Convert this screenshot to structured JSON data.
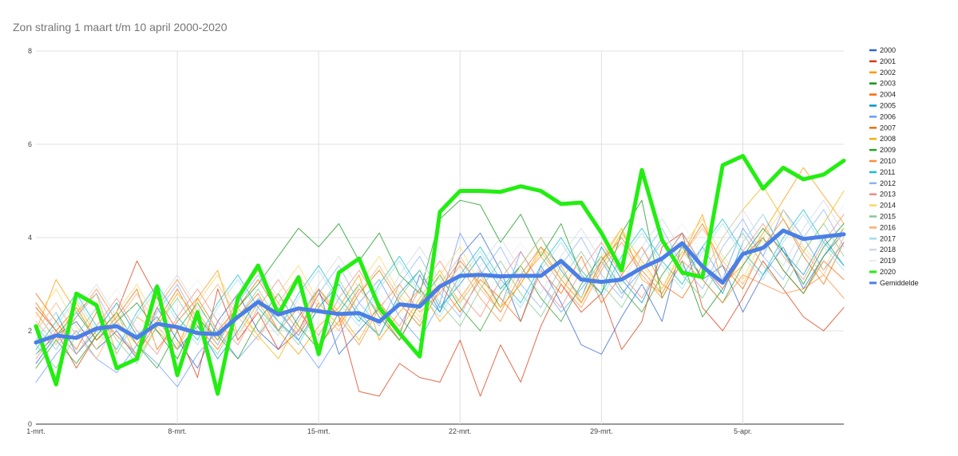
{
  "chart_data": {
    "type": "line",
    "title": "Zon straling 1 maart t/m 10 april 2000-2020",
    "xlabel": "",
    "ylabel": "",
    "ylim": [
      0,
      8
    ],
    "yticks": [
      "0",
      "2",
      "4",
      "6",
      "8"
    ],
    "x_tick_labels": [
      "1-mrt.",
      "8-mrt.",
      "15-mrt.",
      "22-mrt.",
      "29-mrt.",
      "5-apr."
    ],
    "x_tick_days": [
      1,
      8,
      15,
      22,
      29,
      36
    ],
    "x_days": [
      1,
      2,
      3,
      4,
      5,
      6,
      7,
      8,
      9,
      10,
      11,
      12,
      13,
      14,
      15,
      16,
      17,
      18,
      19,
      20,
      21,
      22,
      23,
      24,
      25,
      26,
      27,
      28,
      29,
      30,
      31,
      32,
      33,
      34,
      35,
      36,
      37,
      38,
      39,
      40,
      41
    ],
    "grid": true,
    "legend_position": "right",
    "series": [
      {
        "name": "2000",
        "color": "#3366cc",
        "width": 1,
        "values": [
          1.3,
          1.9,
          2.2,
          1.6,
          2.0,
          1.4,
          2.5,
          1.8,
          1.2,
          2.2,
          2.8,
          2.0,
          1.6,
          2.3,
          2.9,
          1.5,
          2.0,
          2.5,
          1.9,
          3.2,
          2.4,
          3.6,
          4.1,
          3.3,
          2.2,
          3.4,
          2.6,
          1.7,
          1.5,
          2.3,
          3.0,
          2.2,
          3.9,
          3.1,
          3.4,
          2.4,
          3.2,
          3.8,
          2.9,
          3.6,
          4.1
        ]
      },
      {
        "name": "2001",
        "color": "#dc3912",
        "width": 1,
        "values": [
          2.5,
          2.0,
          1.2,
          1.9,
          2.4,
          3.5,
          2.7,
          2.0,
          1.0,
          2.9,
          1.8,
          2.4,
          1.6,
          2.0,
          2.8,
          2.3,
          0.7,
          0.6,
          1.3,
          1.0,
          0.9,
          1.8,
          0.6,
          1.7,
          0.9,
          2.1,
          3.0,
          2.4,
          2.8,
          1.6,
          2.2,
          3.8,
          4.1,
          2.5,
          2.0,
          2.7,
          3.5,
          2.9,
          2.3,
          2.0,
          2.5
        ]
      },
      {
        "name": "2002",
        "color": "#ff9900",
        "width": 1,
        "values": [
          2.0,
          3.1,
          2.4,
          2.8,
          1.5,
          2.3,
          2.0,
          1.6,
          2.7,
          3.3,
          1.9,
          2.6,
          2.0,
          1.5,
          2.1,
          2.5,
          3.2,
          1.8,
          2.4,
          2.9,
          2.2,
          2.7,
          3.3,
          2.5,
          3.0,
          3.8,
          3.4,
          2.6,
          3.5,
          4.2,
          3.1,
          2.8,
          3.6,
          4.5,
          3.0,
          3.4,
          4.1,
          4.8,
          5.5,
          4.9,
          4.3
        ]
      },
      {
        "name": "2003",
        "color": "#109618",
        "width": 1,
        "values": [
          1.5,
          1.9,
          2.4,
          1.8,
          2.2,
          2.6,
          2.0,
          1.4,
          2.3,
          1.8,
          2.5,
          3.0,
          3.6,
          4.2,
          3.8,
          4.3,
          3.5,
          4.1,
          3.2,
          2.8,
          4.4,
          4.8,
          4.7,
          3.9,
          4.5,
          3.6,
          4.3,
          3.2,
          2.8,
          4.1,
          4.8,
          2.7,
          3.5,
          2.3,
          2.9,
          3.6,
          4.2,
          3.7,
          3.0,
          3.8,
          4.3
        ]
      },
      {
        "name": "2004",
        "color": "#ff6600",
        "width": 1,
        "values": [
          2.8,
          2.2,
          1.6,
          2.4,
          1.9,
          1.5,
          2.2,
          2.9,
          2.1,
          1.6,
          2.3,
          2.8,
          2.0,
          2.5,
          1.7,
          2.2,
          2.9,
          2.4,
          1.8,
          2.6,
          3.0,
          2.4,
          3.1,
          2.7,
          2.2,
          3.3,
          2.8,
          3.6,
          2.6,
          3.2,
          3.8,
          3.0,
          2.7,
          3.4,
          2.9,
          3.6,
          4.0,
          3.3,
          2.8,
          3.5,
          3.1
        ]
      },
      {
        "name": "2005",
        "color": "#0099c6",
        "width": 1,
        "values": [
          1.8,
          2.4,
          1.5,
          2.0,
          2.6,
          1.9,
          2.3,
          1.6,
          2.1,
          1.4,
          2.0,
          2.7,
          2.2,
          1.8,
          2.5,
          3.0,
          2.3,
          1.9,
          2.8,
          3.3,
          2.5,
          3.0,
          3.6,
          2.9,
          3.4,
          4.0,
          3.3,
          2.7,
          3.8,
          3.1,
          2.6,
          3.5,
          4.1,
          3.4,
          2.8,
          3.9,
          4.5,
          3.7,
          3.2,
          4.0,
          3.4
        ]
      },
      {
        "name": "2006",
        "color": "#6699ff",
        "width": 1,
        "values": [
          0.9,
          1.5,
          2.0,
          1.4,
          1.1,
          1.7,
          1.3,
          0.8,
          1.5,
          2.0,
          1.4,
          1.9,
          2.5,
          1.8,
          1.2,
          1.9,
          2.6,
          3.1,
          2.3,
          1.8,
          2.6,
          4.1,
          3.3,
          2.5,
          3.7,
          3.0,
          2.4,
          2.9,
          3.5,
          2.8,
          3.3,
          4.0,
          3.2,
          3.8,
          3.1,
          4.2,
          3.6,
          4.6,
          4.0,
          3.3,
          3.9
        ]
      },
      {
        "name": "2007",
        "color": "#e67300",
        "width": 1,
        "values": [
          2.6,
          2.0,
          2.5,
          1.8,
          2.3,
          2.9,
          1.6,
          2.2,
          2.7,
          2.0,
          2.5,
          3.1,
          2.4,
          1.9,
          2.6,
          2.1,
          2.8,
          3.3,
          2.6,
          2.1,
          2.9,
          3.5,
          3.0,
          2.4,
          3.2,
          3.8,
          3.1,
          2.6,
          3.5,
          4.0,
          3.3,
          2.8,
          3.6,
          4.3,
          3.4,
          2.9,
          3.8,
          4.4,
          3.6,
          3.0,
          3.9
        ]
      },
      {
        "name": "2008",
        "color": "#f2b400",
        "width": 1,
        "values": [
          2.2,
          1.7,
          2.6,
          1.9,
          2.4,
          1.4,
          2.1,
          2.8,
          2.3,
          1.7,
          2.5,
          1.9,
          1.4,
          2.2,
          2.9,
          2.4,
          1.8,
          2.6,
          2.0,
          2.7,
          3.3,
          2.6,
          3.2,
          2.5,
          3.0,
          3.7,
          3.1,
          2.6,
          3.4,
          4.1,
          3.5,
          2.9,
          3.7,
          3.2,
          4.0,
          4.6,
          5.1,
          4.4,
          3.7,
          4.3,
          5.0
        ]
      },
      {
        "name": "2009",
        "color": "#2ca02c",
        "width": 1,
        "values": [
          1.2,
          1.8,
          1.3,
          1.9,
          2.4,
          1.7,
          1.2,
          2.0,
          2.6,
          1.9,
          1.4,
          2.2,
          2.8,
          2.1,
          1.6,
          2.4,
          3.0,
          2.3,
          1.8,
          2.6,
          3.2,
          2.5,
          2.0,
          2.8,
          3.4,
          2.7,
          2.2,
          3.0,
          3.6,
          2.9,
          2.4,
          3.2,
          3.8,
          3.1,
          2.6,
          3.4,
          4.0,
          3.3,
          2.8,
          3.6,
          4.2
        ]
      },
      {
        "name": "2010",
        "color": "#fd8d3c",
        "width": 1,
        "values": [
          2.4,
          1.8,
          2.3,
          2.9,
          2.2,
          1.7,
          2.5,
          3.1,
          2.4,
          1.8,
          2.7,
          3.3,
          2.6,
          2.0,
          2.9,
          2.3,
          1.7,
          2.5,
          3.0,
          2.4,
          2.8,
          3.4,
          2.7,
          2.2,
          3.1,
          3.6,
          3.0,
          2.5,
          3.3,
          3.9,
          3.2,
          2.7,
          3.5,
          3.1,
          2.6,
          3.2,
          3.0,
          2.8,
          2.9,
          3.2,
          2.7
        ]
      },
      {
        "name": "2011",
        "color": "#17becf",
        "width": 1,
        "values": [
          1.6,
          2.2,
          2.8,
          2.1,
          1.6,
          2.4,
          3.0,
          2.3,
          1.8,
          2.6,
          3.2,
          2.5,
          2.0,
          2.8,
          3.4,
          2.7,
          2.2,
          3.0,
          3.6,
          2.9,
          2.4,
          3.2,
          3.8,
          3.1,
          2.6,
          3.4,
          4.0,
          3.3,
          2.8,
          3.6,
          4.2,
          3.5,
          3.0,
          3.8,
          4.4,
          3.7,
          3.2,
          4.0,
          4.6,
          3.9,
          3.4
        ]
      },
      {
        "name": "2012",
        "color": "#8ab4f8",
        "width": 1,
        "values": [
          2.1,
          1.6,
          2.3,
          2.8,
          2.0,
          1.5,
          2.4,
          3.0,
          2.2,
          1.7,
          2.6,
          3.2,
          2.4,
          1.9,
          2.8,
          3.4,
          2.6,
          2.1,
          3.0,
          3.6,
          2.8,
          2.3,
          3.2,
          3.8,
          3.0,
          2.5,
          3.4,
          4.0,
          3.2,
          2.7,
          3.6,
          4.2,
          3.4,
          2.9,
          3.8,
          4.4,
          3.6,
          3.1,
          4.0,
          4.6,
          3.8
        ]
      },
      {
        "name": "2013",
        "color": "#f28b82",
        "width": 1,
        "values": [
          1.4,
          2.0,
          1.5,
          2.1,
          2.7,
          2.0,
          1.5,
          2.3,
          2.9,
          2.2,
          1.7,
          2.5,
          3.1,
          2.4,
          1.9,
          2.7,
          3.3,
          2.6,
          2.1,
          2.9,
          3.5,
          2.8,
          2.3,
          3.1,
          3.7,
          3.0,
          2.5,
          3.3,
          3.9,
          3.2,
          2.7,
          3.5,
          4.1,
          3.4,
          2.9,
          3.7,
          4.3,
          3.6,
          3.1,
          3.9,
          4.5
        ]
      },
      {
        "name": "2014",
        "color": "#fdd663",
        "width": 1,
        "values": [
          2.3,
          2.9,
          2.1,
          1.6,
          2.4,
          3.0,
          2.2,
          1.7,
          2.6,
          3.2,
          2.4,
          1.9,
          2.8,
          3.4,
          2.6,
          2.1,
          3.0,
          3.6,
          2.8,
          2.3,
          3.2,
          3.8,
          3.0,
          2.5,
          3.4,
          4.0,
          3.2,
          2.7,
          3.6,
          4.2,
          3.4,
          2.9,
          3.8,
          4.4,
          3.6,
          3.1,
          4.0,
          4.6,
          3.8,
          3.3,
          4.2
        ]
      },
      {
        "name": "2015",
        "color": "#81c995",
        "width": 1,
        "values": [
          1.7,
          1.2,
          1.9,
          2.5,
          1.8,
          1.3,
          2.1,
          2.7,
          2.0,
          1.5,
          2.3,
          2.9,
          2.2,
          1.7,
          2.5,
          3.1,
          2.4,
          1.9,
          2.7,
          3.3,
          2.6,
          2.1,
          2.9,
          3.5,
          2.8,
          2.3,
          3.1,
          3.7,
          3.0,
          2.5,
          3.3,
          3.9,
          3.2,
          2.7,
          3.5,
          4.1,
          3.4,
          2.9,
          3.7,
          4.3,
          3.6
        ]
      },
      {
        "name": "2016",
        "color": "#fcad70",
        "width": 1,
        "values": [
          2.0,
          2.6,
          1.9,
          1.4,
          2.2,
          2.8,
          2.1,
          1.6,
          2.4,
          3.0,
          2.3,
          1.8,
          2.6,
          3.2,
          2.5,
          2.0,
          2.8,
          3.4,
          2.7,
          2.2,
          3.0,
          3.6,
          2.9,
          2.4,
          3.2,
          3.8,
          3.1,
          2.6,
          3.4,
          4.0,
          3.3,
          2.8,
          3.6,
          4.2,
          3.5,
          3.0,
          3.8,
          4.4,
          3.7,
          3.2,
          4.0
        ]
      },
      {
        "name": "2017",
        "color": "#a1dde8",
        "width": 1,
        "values": [
          1.5,
          2.1,
          2.7,
          2.0,
          1.5,
          2.3,
          2.9,
          2.2,
          1.7,
          2.5,
          3.1,
          2.4,
          1.9,
          2.7,
          3.3,
          2.6,
          2.1,
          2.9,
          3.5,
          2.8,
          2.3,
          3.1,
          3.7,
          3.0,
          2.5,
          3.3,
          3.9,
          3.2,
          2.7,
          3.5,
          4.1,
          3.4,
          2.9,
          3.7,
          4.3,
          3.6,
          3.1,
          3.9,
          4.5,
          3.8,
          3.3
        ]
      },
      {
        "name": "2018",
        "color": "#cfd8e3",
        "width": 1,
        "values": [
          2.2,
          1.7,
          2.4,
          3.0,
          2.3,
          1.8,
          2.6,
          3.2,
          2.5,
          2.0,
          2.8,
          3.4,
          2.7,
          2.2,
          3.0,
          3.6,
          2.9,
          2.4,
          3.2,
          3.8,
          3.1,
          2.6,
          3.4,
          4.0,
          3.3,
          2.8,
          3.6,
          4.2,
          3.5,
          3.0,
          3.8,
          4.4,
          3.7,
          3.2,
          4.0,
          4.6,
          3.9,
          3.4,
          4.2,
          4.8,
          4.1
        ]
      },
      {
        "name": "2019",
        "color": "#eeeeee",
        "width": 1,
        "values": [
          1.8,
          2.4,
          1.7,
          2.3,
          2.9,
          2.2,
          1.7,
          2.5,
          3.1,
          2.4,
          1.9,
          2.7,
          3.3,
          2.6,
          2.1,
          2.9,
          3.5,
          2.8,
          2.3,
          3.1,
          3.7,
          3.0,
          2.5,
          3.3,
          3.9,
          3.2,
          2.7,
          3.5,
          4.1,
          3.4,
          2.9,
          3.7,
          4.3,
          3.6,
          3.1,
          3.9,
          4.5,
          3.8,
          3.3,
          4.1,
          4.7
        ]
      },
      {
        "name": "2020",
        "color": "#22ee11",
        "width": 5,
        "values": [
          2.1,
          0.85,
          2.8,
          2.55,
          1.2,
          1.4,
          2.95,
          1.05,
          2.4,
          0.65,
          2.7,
          3.4,
          2.35,
          3.15,
          1.5,
          3.25,
          3.55,
          2.5,
          1.95,
          1.45,
          4.55,
          5.0,
          5.0,
          4.98,
          5.1,
          5.0,
          4.72,
          4.75,
          4.1,
          3.3,
          5.45,
          3.95,
          3.25,
          3.15,
          5.55,
          5.75,
          5.05,
          5.5,
          5.25,
          5.35,
          5.65
        ]
      },
      {
        "name": "Gemiddelde",
        "color": "#4a7fe6",
        "width": 5,
        "values": [
          1.75,
          1.9,
          1.85,
          2.05,
          2.1,
          1.85,
          2.15,
          2.08,
          1.95,
          1.93,
          2.3,
          2.62,
          2.35,
          2.48,
          2.42,
          2.36,
          2.38,
          2.2,
          2.57,
          2.52,
          2.95,
          3.18,
          3.2,
          3.17,
          3.18,
          3.18,
          3.5,
          3.1,
          3.05,
          3.1,
          3.35,
          3.55,
          3.88,
          3.38,
          3.03,
          3.65,
          3.78,
          4.15,
          3.97,
          4.02,
          4.07
        ]
      }
    ]
  }
}
